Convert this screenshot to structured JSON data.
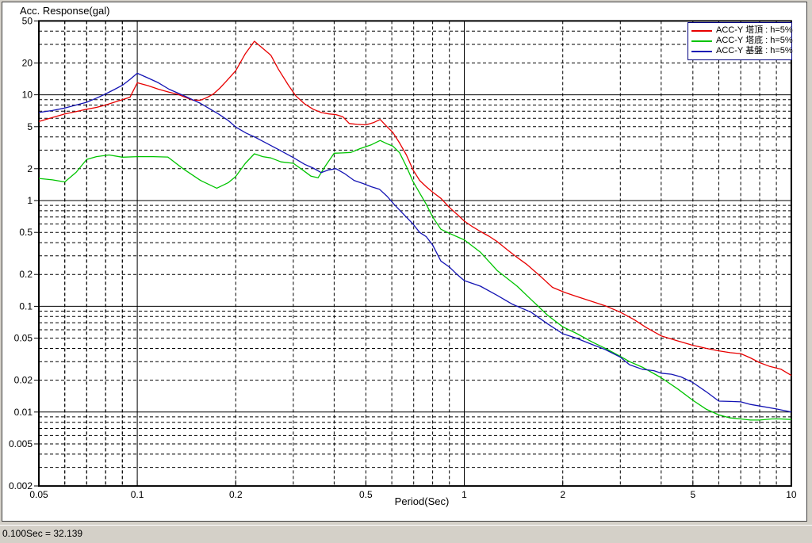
{
  "window": {
    "background": "#d4d0c8"
  },
  "status_bar": {
    "text": "0.100Sec = 32.139"
  },
  "chart_data": {
    "type": "line",
    "title": "",
    "ylabel": "Acc. Response(gal)",
    "xlabel": "Period(Sec)",
    "x_scale": "log",
    "y_scale": "log",
    "xlim": [
      0.05,
      10
    ],
    "ylim": [
      0.002,
      50
    ],
    "grid": "minor gridlines dashed, decade lines solid",
    "x_ticks": [
      0.05,
      0.1,
      0.2,
      0.5,
      1,
      2,
      5,
      10
    ],
    "y_ticks": [
      50,
      20,
      10,
      5,
      2,
      1,
      0.5,
      0.2,
      0.1,
      0.05,
      0.02,
      0.01,
      0.005,
      0.002
    ],
    "x_solid_gridlines": [
      0.1,
      1
    ],
    "y_solid_gridlines": [
      10,
      1,
      0.1,
      0.01
    ],
    "legend_position": "top-right",
    "legend_border_color": "#000080",
    "series": [
      {
        "name": "ACC-Y 塔頂 : h=5%",
        "color": "#e80000",
        "points": [
          [
            0.05,
            5.6
          ],
          [
            0.055,
            6.1
          ],
          [
            0.06,
            6.6
          ],
          [
            0.065,
            6.95
          ],
          [
            0.07,
            7.3
          ],
          [
            0.075,
            7.6
          ],
          [
            0.08,
            8.0
          ],
          [
            0.085,
            8.5
          ],
          [
            0.09,
            9.0
          ],
          [
            0.095,
            9.5
          ],
          [
            0.1,
            13.0
          ],
          [
            0.108,
            12.2
          ],
          [
            0.116,
            11.3
          ],
          [
            0.125,
            10.6
          ],
          [
            0.133,
            10.1
          ],
          [
            0.141,
            9.4
          ],
          [
            0.148,
            8.9
          ],
          [
            0.156,
            8.9
          ],
          [
            0.163,
            9.4
          ],
          [
            0.171,
            10.2
          ],
          [
            0.179,
            11.6
          ],
          [
            0.187,
            13.4
          ],
          [
            0.2,
            16.9
          ],
          [
            0.214,
            24.5
          ],
          [
            0.228,
            32.1
          ],
          [
            0.242,
            27.5
          ],
          [
            0.256,
            23.7
          ],
          [
            0.27,
            17.5
          ],
          [
            0.29,
            12.3
          ],
          [
            0.305,
            9.8
          ],
          [
            0.325,
            8.2
          ],
          [
            0.345,
            7.3
          ],
          [
            0.365,
            6.8
          ],
          [
            0.385,
            6.6
          ],
          [
            0.405,
            6.5
          ],
          [
            0.425,
            6.2
          ],
          [
            0.445,
            5.35
          ],
          [
            0.47,
            5.25
          ],
          [
            0.5,
            5.2
          ],
          [
            0.527,
            5.45
          ],
          [
            0.553,
            5.85
          ],
          [
            0.58,
            5.0
          ],
          [
            0.605,
            4.4
          ],
          [
            0.634,
            3.5
          ],
          [
            0.665,
            2.7
          ],
          [
            0.697,
            1.95
          ],
          [
            0.73,
            1.55
          ],
          [
            0.765,
            1.35
          ],
          [
            0.8,
            1.2
          ],
          [
            0.848,
            1.05
          ],
          [
            0.9,
            0.86
          ],
          [
            0.95,
            0.74
          ],
          [
            1.0,
            0.64
          ],
          [
            1.06,
            0.565
          ],
          [
            1.12,
            0.51
          ],
          [
            1.19,
            0.46
          ],
          [
            1.26,
            0.41
          ],
          [
            1.35,
            0.345
          ],
          [
            1.45,
            0.29
          ],
          [
            1.55,
            0.25
          ],
          [
            1.7,
            0.195
          ],
          [
            1.86,
            0.151
          ],
          [
            2.03,
            0.135
          ],
          [
            2.2,
            0.124
          ],
          [
            2.46,
            0.111
          ],
          [
            2.7,
            0.101
          ],
          [
            3.0,
            0.088
          ],
          [
            3.3,
            0.075
          ],
          [
            3.6,
            0.063
          ],
          [
            4.0,
            0.0525
          ],
          [
            4.5,
            0.047
          ],
          [
            5.0,
            0.0428
          ],
          [
            5.5,
            0.04
          ],
          [
            6.0,
            0.0379
          ],
          [
            6.5,
            0.0364
          ],
          [
            7.0,
            0.0357
          ],
          [
            7.5,
            0.0325
          ],
          [
            8.0,
            0.0293
          ],
          [
            8.6,
            0.027
          ],
          [
            9.3,
            0.0254
          ],
          [
            10,
            0.0222
          ]
        ]
      },
      {
        "name": "ACC-Y 塔底 : h=5%",
        "color": "#00c400",
        "points": [
          [
            0.05,
            1.62
          ],
          [
            0.055,
            1.57
          ],
          [
            0.06,
            1.5
          ],
          [
            0.065,
            1.85
          ],
          [
            0.07,
            2.45
          ],
          [
            0.075,
            2.6
          ],
          [
            0.082,
            2.7
          ],
          [
            0.09,
            2.57
          ],
          [
            0.1,
            2.6
          ],
          [
            0.112,
            2.6
          ],
          [
            0.124,
            2.58
          ],
          [
            0.138,
            2.0
          ],
          [
            0.156,
            1.55
          ],
          [
            0.175,
            1.31
          ],
          [
            0.19,
            1.48
          ],
          [
            0.2,
            1.69
          ],
          [
            0.214,
            2.25
          ],
          [
            0.228,
            2.77
          ],
          [
            0.242,
            2.6
          ],
          [
            0.256,
            2.53
          ],
          [
            0.275,
            2.32
          ],
          [
            0.3,
            2.25
          ],
          [
            0.32,
            1.95
          ],
          [
            0.34,
            1.7
          ],
          [
            0.357,
            1.64
          ],
          [
            0.375,
            2.1
          ],
          [
            0.4,
            2.8
          ],
          [
            0.425,
            2.82
          ],
          [
            0.45,
            2.85
          ],
          [
            0.48,
            3.1
          ],
          [
            0.52,
            3.37
          ],
          [
            0.553,
            3.7
          ],
          [
            0.58,
            3.45
          ],
          [
            0.605,
            3.27
          ],
          [
            0.634,
            2.83
          ],
          [
            0.665,
            2.1
          ],
          [
            0.697,
            1.51
          ],
          [
            0.73,
            1.18
          ],
          [
            0.765,
            0.92
          ],
          [
            0.8,
            0.7
          ],
          [
            0.848,
            0.535
          ],
          [
            0.9,
            0.49
          ],
          [
            0.95,
            0.455
          ],
          [
            1.0,
            0.425
          ],
          [
            1.06,
            0.37
          ],
          [
            1.12,
            0.325
          ],
          [
            1.26,
            0.218
          ],
          [
            1.45,
            0.155
          ],
          [
            1.6,
            0.116
          ],
          [
            1.8,
            0.082
          ],
          [
            2.0,
            0.064
          ],
          [
            2.2,
            0.0555
          ],
          [
            2.46,
            0.046
          ],
          [
            2.7,
            0.04
          ],
          [
            3.0,
            0.0336
          ],
          [
            3.2,
            0.03
          ],
          [
            3.5,
            0.0266
          ],
          [
            4.0,
            0.0211
          ],
          [
            4.5,
            0.0165
          ],
          [
            5.0,
            0.0129
          ],
          [
            5.5,
            0.0106
          ],
          [
            6.0,
            0.0094
          ],
          [
            6.5,
            0.0088
          ],
          [
            7.0,
            0.0086
          ],
          [
            7.5,
            0.0084
          ],
          [
            8.0,
            0.0084
          ],
          [
            8.7,
            0.0086
          ],
          [
            9.3,
            0.0086
          ],
          [
            10,
            0.0085
          ]
        ]
      },
      {
        "name": "ACC-Y 基盤 : h=5%",
        "color": "#1414b4",
        "points": [
          [
            0.05,
            6.8
          ],
          [
            0.055,
            7.1
          ],
          [
            0.06,
            7.5
          ],
          [
            0.065,
            8.0
          ],
          [
            0.07,
            8.5
          ],
          [
            0.075,
            9.3
          ],
          [
            0.08,
            10.2
          ],
          [
            0.085,
            11.2
          ],
          [
            0.09,
            12.3
          ],
          [
            0.095,
            14.0
          ],
          [
            0.1,
            16.0
          ],
          [
            0.108,
            14.4
          ],
          [
            0.116,
            13.0
          ],
          [
            0.125,
            11.3
          ],
          [
            0.14,
            9.7
          ],
          [
            0.156,
            8.3
          ],
          [
            0.177,
            6.6
          ],
          [
            0.19,
            5.7
          ],
          [
            0.2,
            4.95
          ],
          [
            0.215,
            4.35
          ],
          [
            0.23,
            3.95
          ],
          [
            0.25,
            3.45
          ],
          [
            0.275,
            2.95
          ],
          [
            0.3,
            2.55
          ],
          [
            0.325,
            2.2
          ],
          [
            0.345,
            2.03
          ],
          [
            0.365,
            1.84
          ],
          [
            0.385,
            1.95
          ],
          [
            0.405,
            2.0
          ],
          [
            0.43,
            1.8
          ],
          [
            0.46,
            1.55
          ],
          [
            0.49,
            1.45
          ],
          [
            0.52,
            1.35
          ],
          [
            0.55,
            1.28
          ],
          [
            0.58,
            1.1
          ],
          [
            0.61,
            0.92
          ],
          [
            0.65,
            0.75
          ],
          [
            0.697,
            0.6
          ],
          [
            0.73,
            0.5
          ],
          [
            0.765,
            0.455
          ],
          [
            0.8,
            0.38
          ],
          [
            0.848,
            0.268
          ],
          [
            0.9,
            0.235
          ],
          [
            0.95,
            0.2
          ],
          [
            1.0,
            0.175
          ],
          [
            1.12,
            0.155
          ],
          [
            1.26,
            0.127
          ],
          [
            1.4,
            0.105
          ],
          [
            1.6,
            0.088
          ],
          [
            1.8,
            0.068
          ],
          [
            2.0,
            0.055
          ],
          [
            2.2,
            0.05
          ],
          [
            2.46,
            0.0435
          ],
          [
            2.7,
            0.039
          ],
          [
            3.0,
            0.033
          ],
          [
            3.2,
            0.028
          ],
          [
            3.5,
            0.0254
          ],
          [
            3.8,
            0.0246
          ],
          [
            4.0,
            0.0233
          ],
          [
            4.3,
            0.0228
          ],
          [
            4.6,
            0.0215
          ],
          [
            5.0,
            0.019
          ],
          [
            5.5,
            0.0155
          ],
          [
            6.0,
            0.0127
          ],
          [
            6.5,
            0.0126
          ],
          [
            7.0,
            0.0125
          ],
          [
            7.5,
            0.0118
          ],
          [
            8.0,
            0.0114
          ],
          [
            9.0,
            0.0107
          ],
          [
            10,
            0.01
          ]
        ]
      }
    ]
  }
}
